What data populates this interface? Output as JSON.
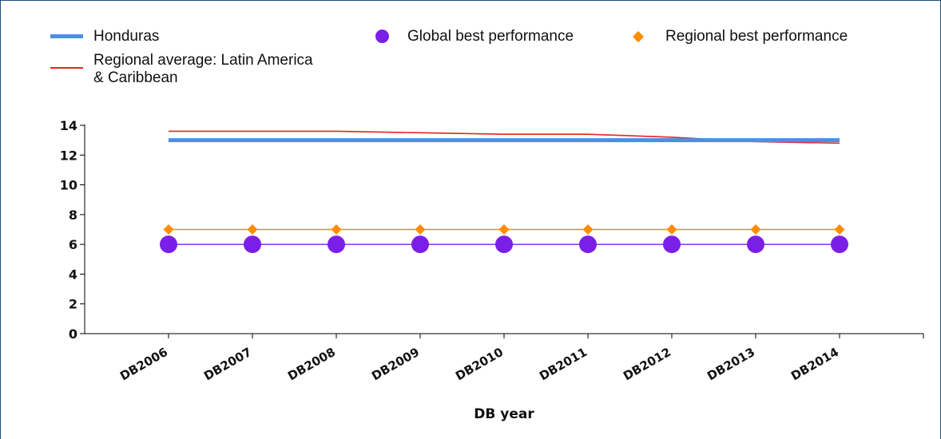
{
  "chart_data": {
    "type": "line",
    "categories": [
      "DB2006",
      "DB2007",
      "DB2008",
      "DB2009",
      "DB2010",
      "DB2011",
      "DB2012",
      "DB2013",
      "DB2014"
    ],
    "series": [
      {
        "name": "Honduras",
        "color": "#4a90e2",
        "marker": "none",
        "values": [
          13,
          13,
          13,
          13,
          13,
          13,
          13,
          13,
          13
        ]
      },
      {
        "name": "Regional average: Latin America & Caribbean",
        "color": "#e8221f",
        "marker": "none",
        "values": [
          13.6,
          13.6,
          13.6,
          13.5,
          13.4,
          13.4,
          13.2,
          12.9,
          12.8
        ]
      },
      {
        "name": "Global best performance",
        "color": "#7b1fe8",
        "marker": "circle",
        "values": [
          6,
          6,
          6,
          6,
          6,
          6,
          6,
          6,
          6
        ]
      },
      {
        "name": "Regional best performance",
        "color": "#ff8c00",
        "marker": "diamond",
        "values": [
          7,
          7,
          7,
          7,
          7,
          7,
          7,
          7,
          7
        ]
      }
    ],
    "xlabel": "DB year",
    "ylabel": "",
    "ylim": [
      0,
      14
    ],
    "yticks": [
      0,
      2,
      4,
      6,
      8,
      10,
      12,
      14
    ],
    "grid": false,
    "legend_position": "top"
  },
  "legend": {
    "honduras": "Honduras",
    "regional_average_line1": "Regional average: Latin America",
    "regional_average_line2": "& Caribbean",
    "global_best": "Global best performance",
    "regional_best": "Regional best performance"
  }
}
